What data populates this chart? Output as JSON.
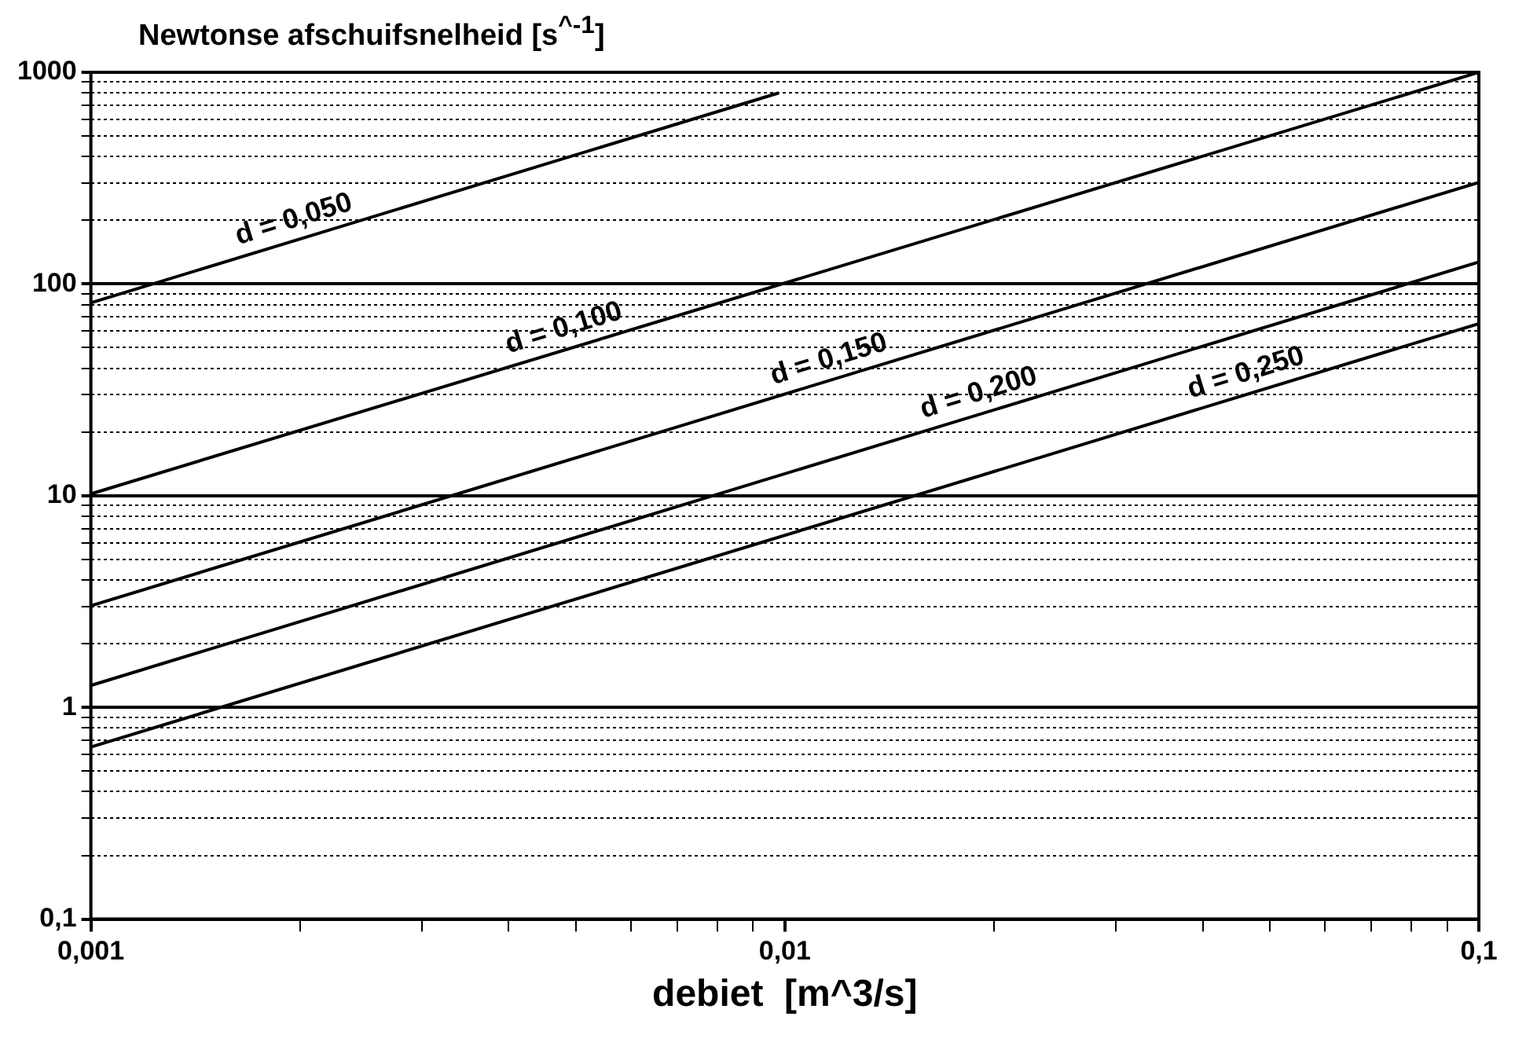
{
  "chart_data": {
    "type": "line",
    "ylabel": "Newtonse afschuifsnelheid [s$^{^-1}$]",
    "xlabel": "debiet  [m^3/s]",
    "log": "xy",
    "grid": "y",
    "legend": false,
    "marker": "none",
    "line_style": "solid",
    "xlim": [
      0.001,
      0.1
    ],
    "ylim": [
      0.1,
      1000
    ],
    "xticks": [
      {
        "value": 0.001,
        "label": "0,001"
      },
      {
        "value": 0.002,
        "label": null
      },
      {
        "value": 0.003,
        "label": null
      },
      {
        "value": 0.004,
        "label": null
      },
      {
        "value": 0.005,
        "label": null
      },
      {
        "value": 0.006,
        "label": null
      },
      {
        "value": 0.007,
        "label": null
      },
      {
        "value": 0.008,
        "label": null
      },
      {
        "value": 0.009,
        "label": null
      },
      {
        "value": 0.01,
        "label": "0,01"
      },
      {
        "value": 0.02,
        "label": null
      },
      {
        "value": 0.03,
        "label": null
      },
      {
        "value": 0.04,
        "label": null
      },
      {
        "value": 0.05,
        "label": null
      },
      {
        "value": 0.06,
        "label": null
      },
      {
        "value": 0.07,
        "label": null
      },
      {
        "value": 0.08,
        "label": null
      },
      {
        "value": 0.09,
        "label": null
      },
      {
        "value": 0.1,
        "label": "0,1"
      }
    ],
    "yticks": [
      {
        "value": 0.1,
        "label": "0,1"
      },
      {
        "value": 0.2,
        "label": null
      },
      {
        "value": 0.3,
        "label": null
      },
      {
        "value": 0.4,
        "label": null
      },
      {
        "value": 0.5,
        "label": null
      },
      {
        "value": 0.6,
        "label": null
      },
      {
        "value": 0.7,
        "label": null
      },
      {
        "value": 0.8,
        "label": null
      },
      {
        "value": 0.9,
        "label": null
      },
      1,
      {
        "value": 2,
        "label": null
      },
      {
        "value": 3,
        "label": null
      },
      {
        "value": 4,
        "label": null
      },
      {
        "value": 5,
        "label": null
      },
      {
        "value": 6,
        "label": null
      },
      {
        "value": 7,
        "label": null
      },
      {
        "value": 8,
        "label": null
      },
      {
        "value": 9,
        "label": null
      },
      10,
      {
        "value": 20,
        "label": null
      },
      {
        "value": 30,
        "label": null
      },
      {
        "value": 40,
        "label": null
      },
      {
        "value": 50,
        "label": null
      },
      {
        "value": 60,
        "label": null
      },
      {
        "value": 70,
        "label": null
      },
      {
        "value": 80,
        "label": null
      },
      {
        "value": 90,
        "label": null
      },
      100,
      {
        "value": 200,
        "label": null
      },
      {
        "value": 300,
        "label": null
      },
      {
        "value": 400,
        "label": null
      },
      {
        "value": 500,
        "label": null
      },
      {
        "value": 600,
        "label": null
      },
      {
        "value": 700,
        "label": null
      },
      {
        "value": 800,
        "label": null
      },
      {
        "value": 900,
        "label": null
      },
      1000
    ],
    "series": [
      {
        "color": "#000000",
        "x": [
          0.001,
          0.0098
        ],
        "values": [
          81.5,
          799
        ]
      },
      {
        "color": "#000000",
        "x": [
          0.001,
          0.1
        ],
        "values": [
          10.2,
          1000
        ]
      },
      {
        "color": "#000000",
        "x": [
          0.001,
          0.1
        ],
        "values": [
          3.02,
          302
        ]
      },
      {
        "color": "#000000",
        "x": [
          0.001,
          0.1
        ],
        "values": [
          1.27,
          127
        ]
      },
      {
        "color": "#000000",
        "x": [
          0.001,
          0.1
        ],
        "values": [
          0.65,
          65
        ]
      }
    ],
    "annotations": [
      {
        "text": "d = 0,050",
        "x": 0.002,
        "y": 163
      },
      {
        "text": "d = 0,100",
        "x": 0.0049,
        "y": 50
      },
      {
        "text": "d = 0,150",
        "x": 0.0118,
        "y": 35.6
      },
      {
        "text": "d = 0,200",
        "x": 0.0194,
        "y": 24.7
      },
      {
        "text": "d = 0,250",
        "x": 0.0471,
        "y": 30.7
      }
    ]
  }
}
